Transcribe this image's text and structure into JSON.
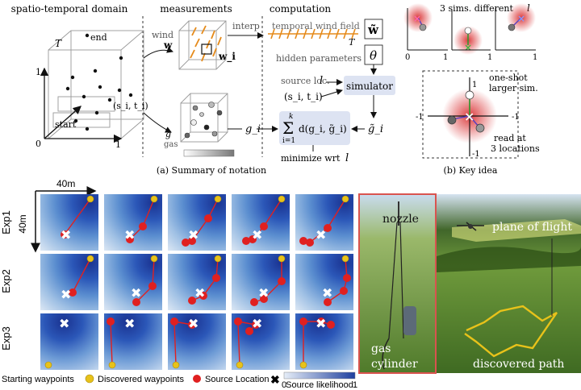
{
  "notation": {
    "heading_domain": "spatio-temporal domain",
    "heading_measurements": "measurements",
    "heading_computation": "computation",
    "label_T": "T",
    "label_end": "end",
    "label_start": "start",
    "label_si_ti": "(s_i, t_i)",
    "axis_zero": "0",
    "axis_one_x": "1",
    "axis_one_y": "1",
    "label_wind": "wind",
    "label_w_bold": "w",
    "label_wi": "w_i",
    "label_g": "g",
    "label_gas": "gas",
    "label_interp": "interp",
    "label_temporal_wind": "temporal wind field",
    "label_T2": "T",
    "label_w_tilde": "w̃",
    "label_hidden": "hidden parameters",
    "label_theta": "θ",
    "label_source_loc": "source loc.",
    "label_l": "l",
    "label_si_ti2": "(s_i, t_i)",
    "simulator": "simulator",
    "label_gi": "g_i",
    "label_gi_tilde": "g̃_i",
    "sum_top": "k",
    "sum_expr": "d(g_i, g̃_i)",
    "sum_bottom": "i=1",
    "minimize": "minimize wrt",
    "minimize_l": "l",
    "caption_a": "(a) Summary of notation"
  },
  "key_idea": {
    "title": "3 sims. different",
    "title_l": "l",
    "tick_0": "0",
    "tick_1a": "1",
    "tick_1b": "1",
    "tick_1c": "1",
    "one_shot": "one-shot",
    "larger_sim": "larger sim.",
    "axis_one": "1",
    "axis_neg_one": "-1",
    "axis_neg_one_b": "-1",
    "axis_neg_one_c": "-1",
    "read_at": "read at",
    "three_loc": "3 locations",
    "caption_b": "(b) Key idea"
  },
  "experiments": {
    "scale_label": "40m",
    "scale_label_v": "40m",
    "rows": [
      "Exp1",
      "Exp2",
      "Exp3"
    ]
  },
  "legend": {
    "starting": "Starting waypoints",
    "discovered": "Discovered waypoints",
    "source": "Source Location",
    "colorbar_min": "0",
    "colorbar_max": "1",
    "colorbar_label": "Source likelihood"
  },
  "photos": {
    "nozzle": "nozzle",
    "gas": "gas",
    "cylinder": "cylinder",
    "plane_of_flight": "plane of flight",
    "discovered_path": "discovered path"
  },
  "colors": {
    "heat_dark": "#1f3f9e",
    "heat_light": "#d7e3f3",
    "waypoint_start": "#e8c21a",
    "waypoint_found": "#e02020",
    "simulator_box": "#dde3f2",
    "arrow_orange": "#e58a1a"
  }
}
